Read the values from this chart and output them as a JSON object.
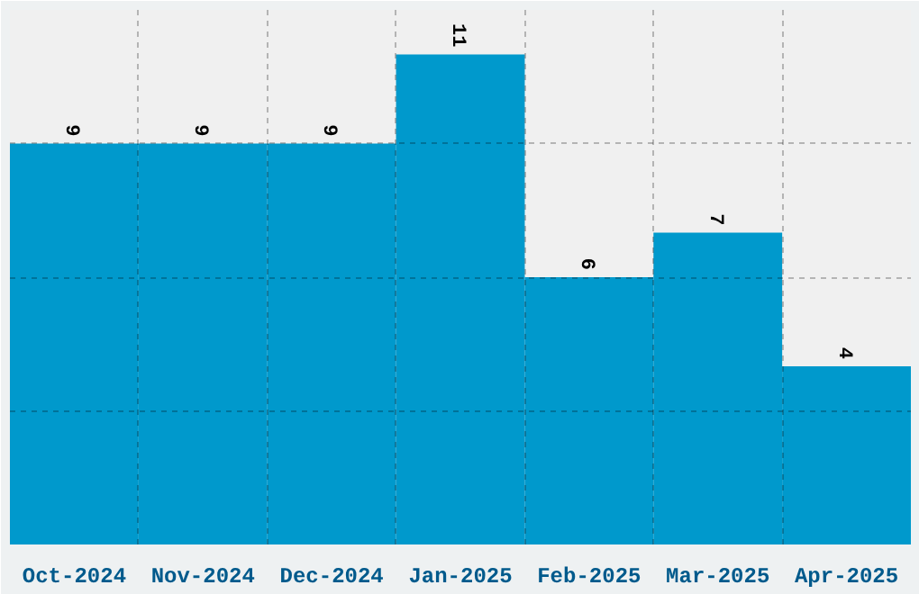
{
  "chart_data": {
    "type": "bar",
    "categories": [
      "Oct-2024",
      "Nov-2024",
      "Dec-2024",
      "Jan-2025",
      "Feb-2025",
      "Mar-2025",
      "Apr-2025"
    ],
    "values": [
      9,
      9,
      9,
      11,
      6,
      7,
      4
    ],
    "color": "#0099cc",
    "ylim": [
      0,
      12
    ],
    "yticks": [
      3,
      6,
      9,
      12
    ],
    "tick_labels": "x",
    "grid": true,
    "data_labels": true
  }
}
